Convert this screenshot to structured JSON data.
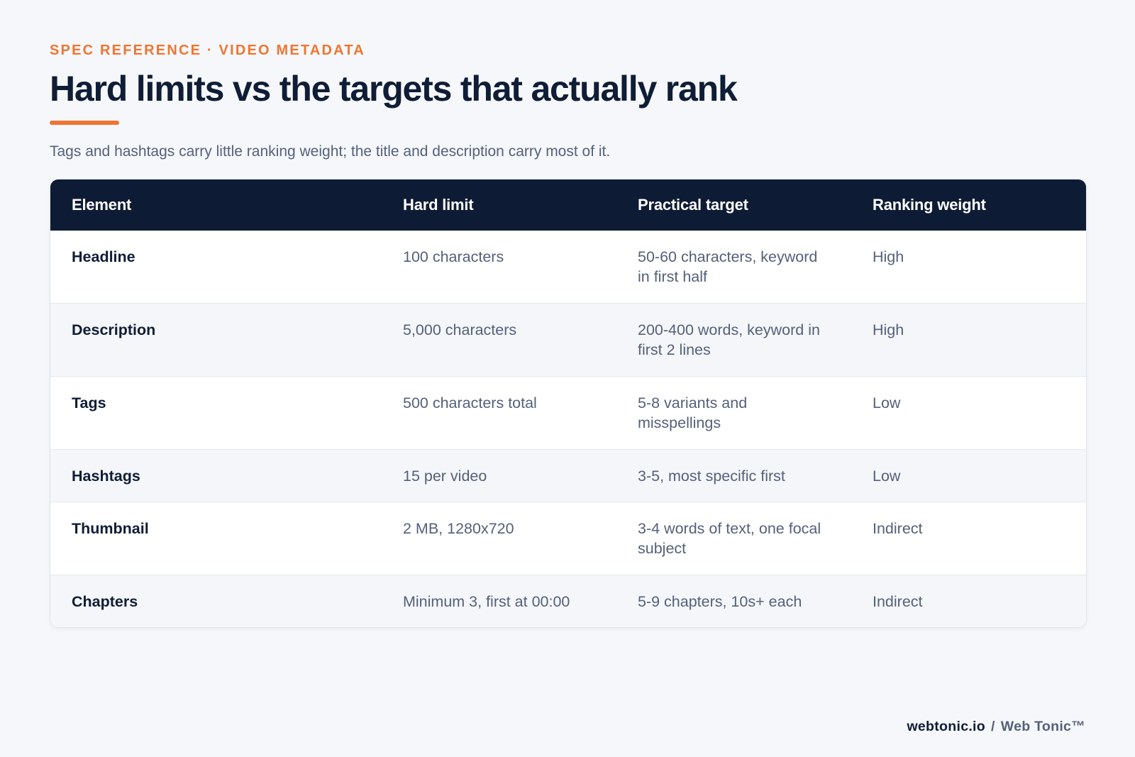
{
  "header": {
    "eyebrow": "SPEC REFERENCE · VIDEO METADATA",
    "title": "Hard limits vs the targets that actually rank",
    "subtitle": "Tags and hashtags carry little ranking weight; the title and description carry most of it."
  },
  "table": {
    "columns": [
      "Element",
      "Hard limit",
      "Practical target",
      "Ranking weight"
    ],
    "rows": [
      {
        "element": "Headline",
        "limit": "100 characters",
        "target": "50-60 characters, keyword in first half",
        "weight": "High"
      },
      {
        "element": "Description",
        "limit": "5,000 characters",
        "target": "200-400 words, keyword in first 2 lines",
        "weight": "High"
      },
      {
        "element": "Tags",
        "limit": "500 characters total",
        "target": "5-8 variants and misspellings",
        "weight": "Low"
      },
      {
        "element": "Hashtags",
        "limit": "15 per video",
        "target": "3-5, most specific first",
        "weight": "Low"
      },
      {
        "element": "Thumbnail",
        "limit": "2 MB, 1280x720",
        "target": "3-4 words of text, one focal subject",
        "weight": "Indirect"
      },
      {
        "element": "Chapters",
        "limit": "Minimum 3, first at 00:00",
        "target": "5-9 chapters, 10s+ each",
        "weight": "Indirect"
      }
    ]
  },
  "footer": {
    "site": "webtonic.io",
    "separator": "/",
    "brand": "Web Tonic™"
  },
  "colors": {
    "accent": "#ee7631",
    "header_bg": "#0e1b34",
    "text_dark": "#0f1d36",
    "text_muted": "#55607a",
    "page_bg": "#f5f7fa"
  }
}
